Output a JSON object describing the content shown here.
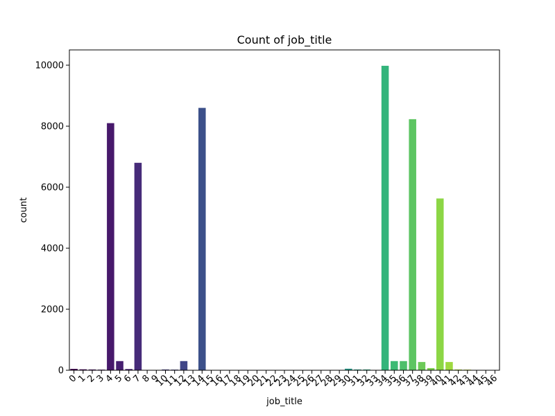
{
  "chart_data": {
    "type": "bar",
    "title": "Count of job_title",
    "xlabel": "job_title",
    "ylabel": "count",
    "categories": [
      "0",
      "1",
      "2",
      "3",
      "4",
      "5",
      "6",
      "7",
      "8",
      "9",
      "10",
      "11",
      "12",
      "13",
      "14",
      "15",
      "16",
      "17",
      "18",
      "19",
      "20",
      "21",
      "22",
      "23",
      "24",
      "25",
      "26",
      "27",
      "28",
      "29",
      "30",
      "31",
      "32",
      "33",
      "34",
      "35",
      "36",
      "37",
      "38",
      "39",
      "40",
      "41",
      "42",
      "43",
      "44",
      "45",
      "46"
    ],
    "values": [
      45,
      30,
      25,
      20,
      8100,
      300,
      40,
      6800,
      5,
      5,
      25,
      20,
      300,
      5,
      8600,
      5,
      5,
      5,
      5,
      5,
      5,
      5,
      5,
      5,
      5,
      5,
      5,
      5,
      5,
      5,
      50,
      25,
      25,
      5,
      9980,
      300,
      300,
      8230,
      270,
      70,
      5630,
      270,
      25,
      20,
      5,
      5,
      5
    ],
    "ylim": [
      0,
      10500
    ],
    "yticks": [
      0,
      2000,
      4000,
      6000,
      8000,
      10000
    ],
    "grid": false,
    "palette": "viridis"
  }
}
